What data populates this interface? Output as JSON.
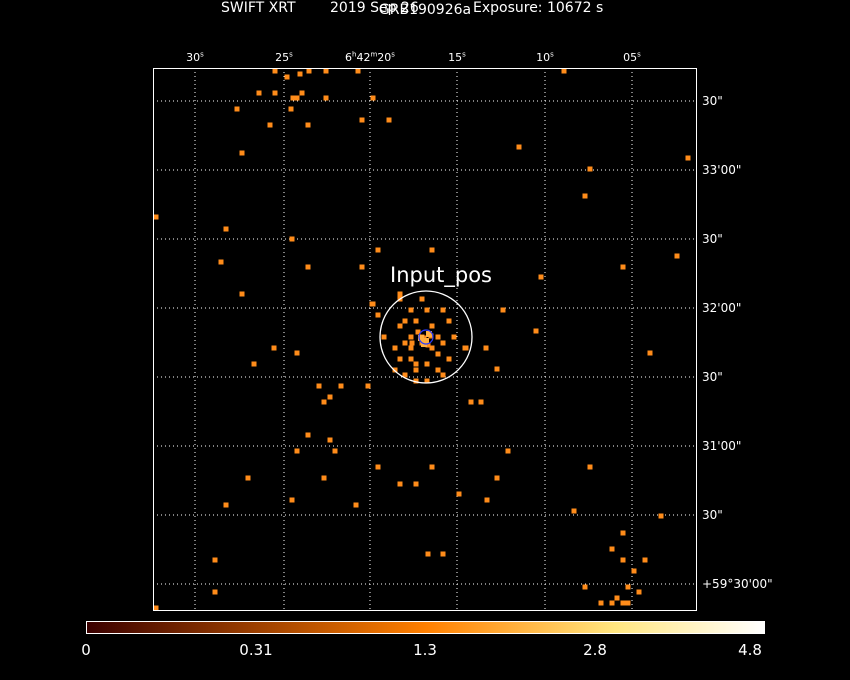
{
  "header": {
    "title": "GRB190926a",
    "instrument": "SWIFT XRT",
    "date": "2019 Sep 26",
    "exposure": "Exposure: 10672 s"
  },
  "axes": {
    "ra_ticks": [
      {
        "text": "30",
        "unit": "s"
      },
      {
        "text": "25",
        "unit": "s"
      },
      {
        "text": "6h42m20",
        "unit": "s"
      },
      {
        "text": "15",
        "unit": "s"
      },
      {
        "text": "10",
        "unit": "s"
      },
      {
        "text": "05",
        "unit": "s"
      }
    ],
    "dec_ticks": [
      "30\"",
      "33'00\"",
      "30\"",
      "32'00\"",
      "30\"",
      "31'00\"",
      "30\"",
      "+59°30'00\""
    ]
  },
  "source": {
    "label": "Input_pos"
  },
  "colorbar": {
    "labels": [
      "0",
      "0.31",
      "1.3",
      "2.8",
      "4.8"
    ],
    "colors": [
      "#3a0000",
      "#ff7f00",
      "#ffe680",
      "#ffffff"
    ]
  },
  "colors": {
    "event": "#ff8c1a",
    "event_bright": "#ffb040",
    "grid": "#ffffff",
    "circle": "#ffffff",
    "inner_circle": "#2a3cff"
  }
}
